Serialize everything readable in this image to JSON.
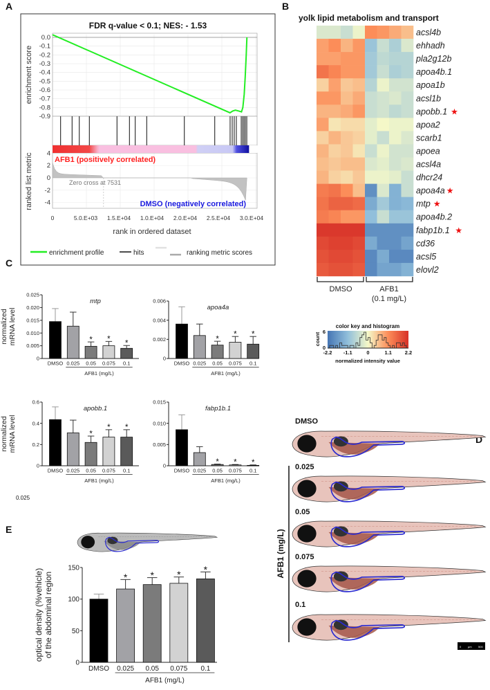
{
  "panel_labels": {
    "a": "A",
    "b": "B",
    "c": "C",
    "d": "D",
    "e": "E"
  },
  "stray_text": "0.025",
  "chart_data": [
    {
      "id": "gsea",
      "type": "line",
      "title": "FDR q-value < 0.1; NES: - 1.53",
      "ylabel_top": "enrichment score",
      "ylabel_bottom": "ranked list metric",
      "xlabel": "rank in ordered dataset",
      "xlim": [
        0,
        30000
      ],
      "ylim_es": [
        -0.9,
        0.05
      ],
      "ylim_metric": [
        -4,
        4
      ],
      "es_ticks": [
        "0.0",
        "-0.1",
        "-0.2",
        "-0.3",
        "-0.4",
        "-0.5",
        "-0.6",
        "-0.7",
        "-0.8",
        "-0.9"
      ],
      "metric_ticks": [
        "4",
        "2",
        "0",
        "-2",
        "-4"
      ],
      "x_ticks": [
        "0",
        "5.0.E+03",
        "1.5.E+04",
        "1.0.E+04",
        "2.0.E+04",
        "2.5.E+04",
        "3.0.E+04"
      ],
      "grid": true,
      "enrichment_profile": {
        "x": [
          0,
          26200,
          26600,
          27000,
          27500,
          27900,
          28100,
          28300,
          28450,
          28600,
          28700
        ],
        "y": [
          0.03,
          -0.86,
          -0.84,
          -0.83,
          -0.84,
          -0.85,
          -0.8,
          -0.65,
          -0.45,
          -0.2,
          0.0
        ]
      },
      "hits": [
        1190,
        2890,
        3950,
        5440,
        9520,
        11360,
        12210,
        13910,
        19460,
        23950,
        26220,
        26530,
        26830,
        27140,
        27860,
        28070,
        28270,
        28470,
        28680
      ],
      "zero_cross": 7531,
      "zero_cross_label": "Zero cross at 7531",
      "positive_label": "AFB1 (positively correlated)",
      "negative_label": "DMSO (negatively correlated)",
      "positive_color": "#ff2020",
      "negative_color": "#1a1adf",
      "profile_color": "#22ee22",
      "legend": [
        "enrichment profile",
        "hits",
        "ranking metric scores"
      ],
      "legend_position": "bottom"
    },
    {
      "id": "heatmap",
      "type": "heatmap",
      "title": "yolk lipid metabolism and transport",
      "rows": [
        "acsl4b",
        "ehhadh",
        "pla2g12b",
        "apoa4b.1",
        "apoa1b",
        "acsl1b",
        "apobb.1",
        "apoa2",
        "scarb1",
        "apoea",
        "acsl4a",
        "dhcr24",
        "apoa4a",
        "mtp",
        "apoa4b.2",
        "fabp1b.1",
        "cd36",
        "acsl5",
        "elovl2"
      ],
      "starred_rows": [
        "apobb.1",
        "apoa4a",
        "mtp",
        "fabp1b.1"
      ],
      "groups": [
        {
          "label": "DMSO",
          "columns": 4
        },
        {
          "label": "AFB1",
          "sublabel": "(0.1 mg/L)",
          "columns": 4
        }
      ],
      "values": [
        [
          -0.3,
          -0.3,
          -0.5,
          -0.1,
          1.1,
          1.0,
          0.8,
          0.6
        ],
        [
          0.9,
          1.1,
          0.7,
          1.0,
          -1.0,
          -0.5,
          -0.8,
          -0.3
        ],
        [
          0.9,
          0.9,
          1.0,
          1.0,
          -0.9,
          -0.6,
          -0.7,
          -0.7
        ],
        [
          1.4,
          1.2,
          1.0,
          1.0,
          -0.9,
          -0.5,
          -0.8,
          -0.7
        ],
        [
          0.4,
          0.9,
          0.5,
          0.6,
          -0.7,
          -0.1,
          -0.4,
          -0.4
        ],
        [
          1.0,
          1.0,
          0.6,
          0.8,
          -0.5,
          -0.4,
          -0.3,
          -0.5
        ],
        [
          0.7,
          0.7,
          0.8,
          1.0,
          -0.5,
          -0.4,
          -0.6,
          -0.5
        ],
        [
          0.9,
          0.2,
          0.3,
          0.3,
          -0.2,
          0.0,
          -0.1,
          -0.1
        ],
        [
          0.4,
          0.7,
          0.5,
          0.4,
          -0.2,
          -0.5,
          -0.1,
          -0.3
        ],
        [
          0.7,
          0.4,
          0.5,
          0.2,
          -0.5,
          -0.1,
          -0.4,
          -0.4
        ],
        [
          0.6,
          0.5,
          0.6,
          0.6,
          -0.3,
          -0.2,
          -0.4,
          -0.3
        ],
        [
          0.7,
          0.4,
          0.3,
          0.5,
          -0.1,
          -0.1,
          -0.2,
          -0.5
        ],
        [
          1.3,
          1.4,
          1.1,
          0.6,
          -1.8,
          -0.3,
          -1.3,
          -0.5
        ],
        [
          1.4,
          1.6,
          1.6,
          1.5,
          -1.4,
          -0.9,
          -1.3,
          -1.2
        ],
        [
          1.3,
          1.2,
          1.0,
          1.0,
          -1.1,
          -0.5,
          -1.0,
          -1.0
        ],
        [
          2.1,
          2.1,
          2.1,
          2.1,
          -1.8,
          -1.8,
          -1.8,
          -1.8
        ],
        [
          1.9,
          2.0,
          2.0,
          1.9,
          -1.4,
          -1.8,
          -1.8,
          -1.5
        ],
        [
          1.8,
          1.9,
          1.9,
          1.8,
          -1.9,
          -1.4,
          -1.9,
          -1.9
        ],
        [
          1.7,
          1.8,
          1.8,
          1.7,
          -1.9,
          -1.5,
          -1.5,
          -1.3
        ]
      ],
      "color_scale": [
        "#4575b4",
        "#91bfdb",
        "#f5f8c8",
        "#fc8d59",
        "#d73027"
      ],
      "color_key": {
        "title": "color key and histogram",
        "ylabel": "count",
        "xlabel": "normalized intensity value",
        "x_ticks": [
          "-2.2",
          "-1.1",
          "0",
          "1.1",
          "2.2"
        ],
        "y_ticks": [
          "0",
          "6"
        ],
        "range": [
          -2.2,
          2.2
        ]
      }
    },
    {
      "id": "mtp",
      "type": "bar",
      "title": "mtp",
      "ylabel": "normalized mRNA level",
      "ylabel_lines": [
        "normalized",
        "mRNA level"
      ],
      "ylim": [
        0,
        0.025
      ],
      "y_ticks": [
        "0",
        "0.005",
        "0.010",
        "0.015",
        "0.020",
        "0.025"
      ],
      "categories": [
        "DMSO",
        "0.025",
        "0.05",
        "0.075",
        "0.1"
      ],
      "values": [
        0.0145,
        0.0127,
        0.0048,
        0.005,
        0.004
      ],
      "error_upper": [
        0.0196,
        0.0182,
        0.0065,
        0.0067,
        0.0051
      ],
      "significant": [
        false,
        false,
        true,
        true,
        true
      ],
      "xlabel": "AFB1 (mg/L)"
    },
    {
      "id": "apoa4a",
      "type": "bar",
      "title": "apoa4a",
      "ylim": [
        0,
        0.006
      ],
      "y_ticks": [
        "0",
        "0.002",
        "0.004",
        "0.006"
      ],
      "categories": [
        "DMSO",
        "0.025",
        "0.05",
        "0.075",
        "0.1"
      ],
      "values": [
        0.0036,
        0.0024,
        0.0014,
        0.0017,
        0.0015
      ],
      "error_upper": [
        0.0054,
        0.0036,
        0.0018,
        0.0023,
        0.0023
      ],
      "significant": [
        false,
        false,
        true,
        true,
        true
      ],
      "xlabel": "AFB1 (mg/L)"
    },
    {
      "id": "apobb1",
      "type": "bar",
      "title": "apobb.1",
      "ylabel": "normalized mRNA level",
      "ylabel_lines": [
        "normalized",
        "mRNA level"
      ],
      "ylim": [
        0,
        0.6
      ],
      "y_ticks": [
        "0",
        "0.2",
        "0.4",
        "0.6"
      ],
      "categories": [
        "DMSO",
        "0.025",
        "0.05",
        "0.075",
        "0.1"
      ],
      "values": [
        0.435,
        0.31,
        0.22,
        0.27,
        0.27
      ],
      "error_upper": [
        0.555,
        0.43,
        0.28,
        0.34,
        0.34
      ],
      "significant": [
        false,
        false,
        true,
        true,
        true
      ],
      "xlabel": "AFB1 (mg/L)"
    },
    {
      "id": "fabp1b1",
      "type": "bar",
      "title": "fabp1b.1",
      "ylim": [
        0,
        0.015
      ],
      "y_ticks": [
        "0",
        "0.005",
        "0.010",
        "0.015"
      ],
      "categories": [
        "DMSO",
        "0.025",
        "0.05",
        "0.075",
        "0.1"
      ],
      "values": [
        0.0085,
        0.0031,
        0.0003,
        0.0002,
        0.0001
      ],
      "error_upper": [
        0.012,
        0.0045,
        0.0004,
        0.0003,
        0.0002
      ],
      "significant": [
        false,
        false,
        true,
        true,
        true
      ],
      "xlabel": "AFB1 (mg/L)"
    },
    {
      "id": "optical",
      "type": "bar",
      "ylabel_lines": [
        "optical density (%vehicle)",
        "of the abdominal region"
      ],
      "ylim": [
        0,
        150
      ],
      "y_ticks": [
        "0",
        "50",
        "100",
        "150"
      ],
      "categories": [
        "DMSO",
        "0.025",
        "0.05",
        "0.075",
        "0.1"
      ],
      "values": [
        100,
        116,
        123,
        125,
        132
      ],
      "error_upper": [
        108,
        131,
        134,
        135,
        143
      ],
      "significant": [
        false,
        true,
        true,
        true,
        true
      ],
      "xlabel": "AFB1 (mg/L)"
    }
  ],
  "bar_colors": [
    "#000000",
    "#a2a2a6",
    "#7b7b7b",
    "#d2d2d2",
    "#5a5a5a"
  ],
  "images": {
    "labels": [
      "DMSO",
      "0.025",
      "0.05",
      "0.075",
      "0.1"
    ],
    "group_label": "AFB1 (mg/L)",
    "scale_bar": [
      "0",
      "µm",
      "500"
    ],
    "outline_color": "#2a2ad0"
  }
}
